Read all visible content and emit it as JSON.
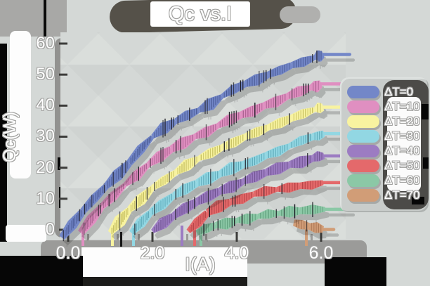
{
  "title": "Qc vs.I",
  "axes": {
    "x_label": "I(A)",
    "y_label": "Qc(W)",
    "x_ticks": [
      "0.0",
      "2.0",
      "4.0",
      "6.0"
    ],
    "y_ticks": [
      "60",
      "50",
      "40",
      "30",
      "20",
      "10",
      "0"
    ]
  },
  "legend": [
    {
      "label": "ΔT=0",
      "color": "#7387c8"
    },
    {
      "label": "ΔT=10",
      "color": "#e08fc1"
    },
    {
      "label": "ΔT=20",
      "color": "#f8f3a0"
    },
    {
      "label": "ΔT=30",
      "color": "#92d7e3"
    },
    {
      "label": "ΔT=40",
      "color": "#9c7cc2"
    },
    {
      "label": "ΔT=50",
      "color": "#e4696b"
    },
    {
      "label": "ΔT=60",
      "color": "#8bc8a6"
    },
    {
      "label": "ΔT=70",
      "color": "#d19d77"
    }
  ],
  "chart_data": {
    "type": "line",
    "title": "Qc vs.I",
    "xlabel": "I(A)",
    "ylabel": "Qc(W)",
    "xlim": [
      0,
      6.7
    ],
    "ylim": [
      0,
      60
    ],
    "x_ticks": [
      0,
      2,
      4,
      6
    ],
    "y_ticks": [
      0,
      10,
      20,
      30,
      40,
      50,
      60
    ],
    "grid": false,
    "legend_position": "right",
    "style": "hand-drawn thick brush bands with vertical tick texture and flat drop shadows",
    "series": [
      {
        "name": "ΔT=0",
        "color": "#7387c8",
        "tick_color": "#4a5a94",
        "drip_at": null,
        "tail_to": 6.68,
        "points": [
          [
            -0.15,
            -2.5
          ],
          [
            0.35,
            6
          ],
          [
            0.9,
            14
          ],
          [
            1.45,
            21.5
          ],
          [
            2.0,
            30
          ],
          [
            2.55,
            35
          ],
          [
            3.1,
            38.5
          ],
          [
            3.65,
            43
          ],
          [
            4.2,
            47
          ],
          [
            4.75,
            50
          ],
          [
            5.3,
            53
          ],
          [
            5.85,
            55.5
          ],
          [
            6.05,
            56.5
          ]
        ]
      },
      {
        "name": "ΔT=10",
        "color": "#e08fc1",
        "tick_color": "#a85f8e",
        "drip_at": 0.35,
        "tail_to": 6.65,
        "points": [
          [
            0.3,
            -1
          ],
          [
            0.8,
            7.5
          ],
          [
            1.35,
            14.5
          ],
          [
            1.9,
            21
          ],
          [
            2.45,
            26
          ],
          [
            3.0,
            30
          ],
          [
            3.55,
            33.5
          ],
          [
            4.1,
            37
          ],
          [
            4.65,
            40
          ],
          [
            5.2,
            43
          ],
          [
            5.75,
            45.8
          ],
          [
            6.0,
            47
          ]
        ]
      },
      {
        "name": "ΔT=20",
        "color": "#f8f3a0",
        "tick_color": "#c0ba58",
        "drip_at": 1.05,
        "tail_to": 6.62,
        "points": [
          [
            1.0,
            -1
          ],
          [
            1.45,
            6.5
          ],
          [
            2.0,
            13.5
          ],
          [
            2.55,
            18.5
          ],
          [
            3.1,
            23
          ],
          [
            3.65,
            26.5
          ],
          [
            4.2,
            30
          ],
          [
            4.75,
            33
          ],
          [
            5.3,
            36
          ],
          [
            5.85,
            38.8
          ],
          [
            6.05,
            39.5
          ]
        ]
      },
      {
        "name": "ΔT=30",
        "color": "#92d7e3",
        "tick_color": "#58a4b4",
        "drip_at": 1.55,
        "tail_to": 6.68,
        "points": [
          [
            1.5,
            -1
          ],
          [
            1.95,
            5.5
          ],
          [
            2.5,
            11
          ],
          [
            3.05,
            15
          ],
          [
            3.6,
            18
          ],
          [
            4.15,
            21
          ],
          [
            4.7,
            24
          ],
          [
            5.25,
            27
          ],
          [
            5.8,
            30
          ],
          [
            6.07,
            31
          ]
        ]
      },
      {
        "name": "ΔT=40",
        "color": "#9c7cc2",
        "tick_color": "#6e518f",
        "drip_at": 2.7,
        "tail_to": 6.66,
        "points": [
          [
            2.0,
            -0.5
          ],
          [
            2.5,
            4.5
          ],
          [
            3.05,
            9
          ],
          [
            3.6,
            12.5
          ],
          [
            4.15,
            15.5
          ],
          [
            4.7,
            18.5
          ],
          [
            5.25,
            21
          ],
          [
            5.8,
            23
          ],
          [
            6.07,
            23.8
          ]
        ]
      },
      {
        "name": "ΔT=50",
        "color": "#e4696b",
        "tick_color": "#b03f42",
        "drip_at": 3.0,
        "tail_to": 6.6,
        "points": [
          [
            2.85,
            -0.5
          ],
          [
            3.3,
            5.5
          ],
          [
            3.85,
            9
          ],
          [
            4.4,
            11.5
          ],
          [
            4.95,
            13
          ],
          [
            5.5,
            14.2
          ],
          [
            6.05,
            15.2
          ]
        ]
      },
      {
        "name": "ΔT=60",
        "color": "#8bc8a6",
        "tick_color": "#5c9a78",
        "drip_at": 3.15,
        "tail_to": 6.68,
        "points": [
          [
            3.05,
            -1
          ],
          [
            3.5,
            1.5
          ],
          [
            4.0,
            3
          ],
          [
            4.5,
            4.3
          ],
          [
            5.0,
            5.3
          ],
          [
            5.5,
            6.1
          ],
          [
            6.1,
            6.6
          ]
        ]
      },
      {
        "name": "ΔT=70",
        "color": "#d19d77",
        "tick_color": "#a06c4a",
        "drip_at": 5.65,
        "tail_to": 6.3,
        "points": [
          [
            5.35,
            2.3
          ],
          [
            5.72,
            1.1
          ],
          [
            6.05,
            0.1
          ]
        ]
      }
    ],
    "extra_segment": {
      "color": "#9a9b1c",
      "width": 8,
      "points": [
        [
          5.97,
          -0.45
        ],
        [
          6.62,
          -0.45
        ]
      ],
      "note": "unlabeled olive mark at lower right"
    }
  }
}
